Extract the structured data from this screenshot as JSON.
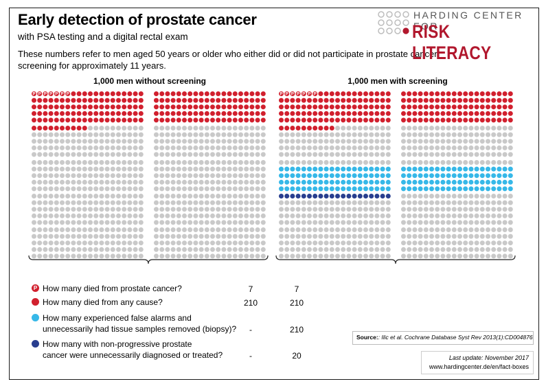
{
  "header": {
    "title": "Early detection of prostate cancer",
    "subtitle": "with PSA testing and a digital rectal exam",
    "intro": "These numbers refer to men aged 50 years or older who either did or did not participate in prostate cancer screening for approximately 11 years."
  },
  "logo": {
    "line1": "HARDING CENTER FOR",
    "line2": "RISK LITERACY",
    "dot_color_gray": "#bdbdbd",
    "dot_color_red": "#b1172d"
  },
  "colors": {
    "prostate_death": "#d1202e",
    "any_death": "#d1202e",
    "false_alarm": "#36b8e8",
    "overdiagnosis": "#283e8f",
    "unaffected": "#c9c9c9"
  },
  "chart_data": {
    "type": "icon-array",
    "total_per_group": 1000,
    "groups": [
      {
        "name": "1,000 men without screening",
        "prostate_cancer_deaths": 7,
        "all_cause_deaths": 210,
        "false_alarms_biopsy": null,
        "overdiagnosed_treated": null
      },
      {
        "name": "1,000 men with screening",
        "prostate_cancer_deaths": 7,
        "all_cause_deaths": 210,
        "false_alarms_biopsy": 210,
        "overdiagnosed_treated": 20
      }
    ],
    "legend": [
      {
        "key": "prostate_death",
        "icon": "P",
        "question": "How many died from prostate cancer?",
        "without": "7",
        "with": "7"
      },
      {
        "key": "any_death",
        "icon": "",
        "question": "How many died from any cause?",
        "without": "210",
        "with": "210"
      },
      {
        "key": "false_alarm",
        "icon": "",
        "question": "How many experienced false alarms and unnecessarily had tissue samples removed (biopsy)?",
        "without": "-",
        "with": "210"
      },
      {
        "key": "overdiagnosis",
        "icon": "",
        "question": "How many with non-progressive prostate cancer were unnecessarily diagnosed or treated?",
        "without": "-",
        "with": "20"
      }
    ]
  },
  "source": {
    "label": "Source:",
    "text": ": Ilic et al. Cochrane Database Syst Rev 2013(1):CD004876."
  },
  "footer": {
    "update": "Last update: November 2017",
    "url": "www.hardingcenter.de/en/fact-boxes"
  }
}
